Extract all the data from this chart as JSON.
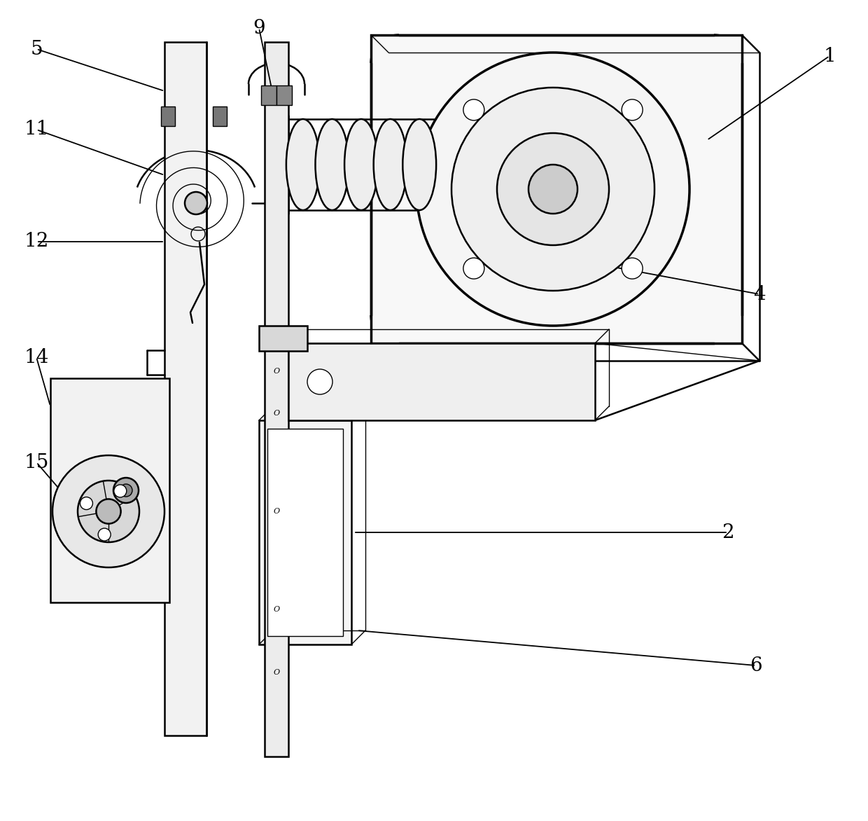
{
  "bg_color": "#ffffff",
  "lc": "#000000",
  "lw_thin": 1.0,
  "lw_med": 1.8,
  "lw_thick": 2.5,
  "fig_w": 12.4,
  "fig_h": 11.72,
  "label_fs": 20,
  "note_fs": 10,
  "xlim": [
    0,
    1240
  ],
  "ylim": [
    0,
    1172
  ]
}
